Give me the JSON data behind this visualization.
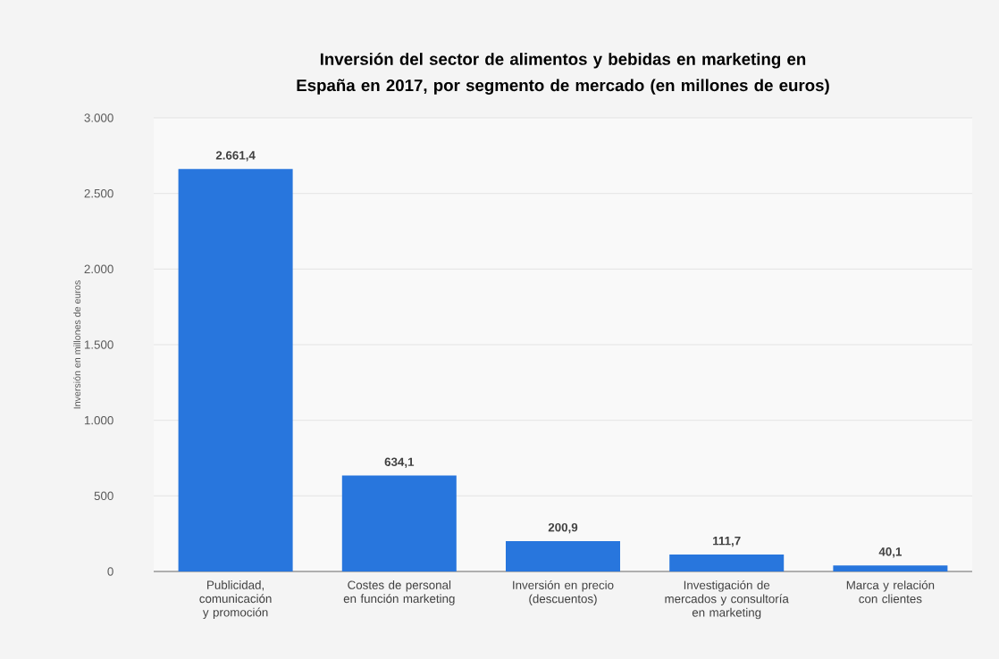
{
  "chart_data": {
    "type": "bar",
    "title": "Inversión del sector de alimentos y bebidas en marketing en España en 2017, por segmento de mercado (en millones de euros)",
    "ylabel": "Inversión en millones de euros",
    "categories": [
      "Publicidad, comunicación y promoción",
      "Costes de personal en función marketing",
      "Inversión en precio (descuentos)",
      "Investigación de mercados y consultoría en marketing",
      "Marca y relación con clientes"
    ],
    "values": [
      2661.4,
      634.1,
      200.9,
      111.7,
      40.1
    ],
    "value_labels": [
      "2.661,4",
      "634,1",
      "200,9",
      "111,7",
      "40,1"
    ],
    "color": "#2876dd",
    "ylim": [
      0,
      3000
    ],
    "yticks": [
      0,
      500,
      {
        "value": 1000,
        "label": "1.000"
      },
      {
        "value": 1500,
        "label": "1.500"
      },
      {
        "value": 2000,
        "label": "2.000"
      },
      {
        "value": 2500,
        "label": "2.500"
      },
      {
        "value": 3000,
        "label": "3.000"
      }
    ],
    "grid": "y"
  }
}
